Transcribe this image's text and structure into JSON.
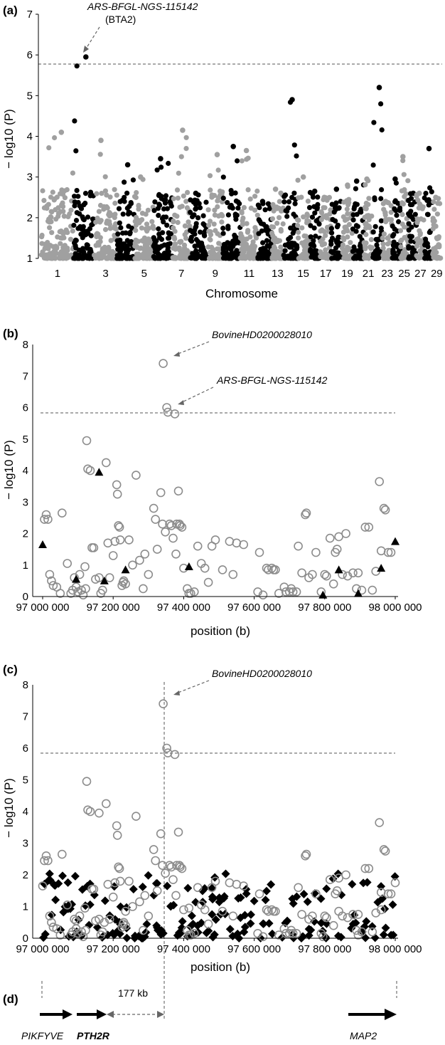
{
  "panels": {
    "a": {
      "label": "(a)",
      "ylabel": "− log10 (P)",
      "xlabel": "Chromosome",
      "annotation_marker": "ARS-BFGL-NGS-115142",
      "annotation_chrom": "(BTA2)"
    },
    "b": {
      "label": "(b)",
      "ylabel": "− log10 (P)",
      "xlabel": "position (b)",
      "annotation_top": "BovineHD0200028010",
      "annotation_second": "ARS-BFGL-NGS-115142"
    },
    "c": {
      "label": "(c)",
      "ylabel": "− log10 (P)",
      "xlabel": "position (b)",
      "annotation_top": "BovineHD0200028010"
    },
    "d": {
      "label": "(d)",
      "distance": "177 kb",
      "genes": [
        {
          "name": "PIKFYVE",
          "bold": false
        },
        {
          "name": "PTH2R",
          "bold": true
        },
        {
          "name": "MAP2",
          "bold": false
        }
      ]
    }
  },
  "chart_data": [
    {
      "type": "scatter",
      "title": "",
      "xlabel": "Chromosome",
      "ylabel": "− log10 (P)",
      "ylim": [
        1,
        7
      ],
      "yticks": [
        1,
        2,
        3,
        4,
        5,
        6,
        7
      ],
      "threshold": 5.8,
      "xtick_labels": [
        "1",
        "3",
        "5",
        "7",
        "9",
        "11",
        "13",
        "15",
        "17",
        "19",
        "21",
        "23",
        "25",
        "27",
        "29"
      ],
      "chromosomes": [
        {
          "chrom": 1,
          "color": "#a0a0a0",
          "max": 4.1
        },
        {
          "chrom": 2,
          "color": "#000000",
          "max": 5.95
        },
        {
          "chrom": 3,
          "color": "#a0a0a0",
          "max": 3.9
        },
        {
          "chrom": 4,
          "color": "#000000",
          "max": 3.3
        },
        {
          "chrom": 5,
          "color": "#a0a0a0",
          "max": 3.0
        },
        {
          "chrom": 6,
          "color": "#000000",
          "max": 3.45
        },
        {
          "chrom": 7,
          "color": "#a0a0a0",
          "max": 4.15
        },
        {
          "chrom": 8,
          "color": "#000000",
          "max": 2.6
        },
        {
          "chrom": 9,
          "color": "#a0a0a0",
          "max": 3.55
        },
        {
          "chrom": 10,
          "color": "#000000",
          "max": 3.75
        },
        {
          "chrom": 11,
          "color": "#a0a0a0",
          "max": 3.65
        },
        {
          "chrom": 12,
          "color": "#000000",
          "max": 2.4
        },
        {
          "chrom": 13,
          "color": "#a0a0a0",
          "max": 2.7
        },
        {
          "chrom": 14,
          "color": "#000000",
          "max": 4.9
        },
        {
          "chrom": 15,
          "color": "#a0a0a0",
          "max": 3.0
        },
        {
          "chrom": 16,
          "color": "#000000",
          "max": 2.65
        },
        {
          "chrom": 17,
          "color": "#a0a0a0",
          "max": 2.5
        },
        {
          "chrom": 18,
          "color": "#000000",
          "max": 2.7
        },
        {
          "chrom": 19,
          "color": "#a0a0a0",
          "max": 2.8
        },
        {
          "chrom": 20,
          "color": "#000000",
          "max": 2.9
        },
        {
          "chrom": 21,
          "color": "#a0a0a0",
          "max": 2.95
        },
        {
          "chrom": 22,
          "color": "#000000",
          "max": 5.2
        },
        {
          "chrom": 23,
          "color": "#a0a0a0",
          "max": 2.4
        },
        {
          "chrom": 24,
          "color": "#000000",
          "max": 2.95
        },
        {
          "chrom": 25,
          "color": "#a0a0a0",
          "max": 3.5
        },
        {
          "chrom": 26,
          "color": "#000000",
          "max": 2.6
        },
        {
          "chrom": 27,
          "color": "#a0a0a0",
          "max": 2.6
        },
        {
          "chrom": 28,
          "color": "#000000",
          "max": 3.7
        },
        {
          "chrom": 29,
          "color": "#a0a0a0",
          "max": 2.5
        }
      ]
    },
    {
      "type": "scatter",
      "title": "",
      "xlabel": "position (b)",
      "ylabel": "− log10 (P)",
      "xlim": [
        97000000,
        98000000
      ],
      "xtick_labels": [
        "97 000 000",
        "97 200 000",
        "97 400 000",
        "97 600 000",
        "97 800 000",
        "98 000 000"
      ],
      "xticks": [
        97000000,
        97200000,
        97400000,
        97600000,
        97800000,
        98000000
      ],
      "ylim": [
        0,
        8
      ],
      "yticks": [
        0,
        1,
        2,
        3,
        4,
        5,
        6,
        7,
        8
      ],
      "threshold": 5.8,
      "circles": [
        [
          97005000,
          2.45
        ],
        [
          97010000,
          2.6
        ],
        [
          97015000,
          2.45
        ],
        [
          97020000,
          0.7
        ],
        [
          97025000,
          0.5
        ],
        [
          97030000,
          0.35
        ],
        [
          97040000,
          0.3
        ],
        [
          97050000,
          0.1
        ],
        [
          97055000,
          2.65
        ],
        [
          97070000,
          1.05
        ],
        [
          97080000,
          0.1
        ],
        [
          97085000,
          0.2
        ],
        [
          97090000,
          0.6
        ],
        [
          97095000,
          0.3
        ],
        [
          97100000,
          0.15
        ],
        [
          97105000,
          0.7
        ],
        [
          97110000,
          0.2
        ],
        [
          97115000,
          0.05
        ],
        [
          97120000,
          0.95
        ],
        [
          97122000,
          0.25
        ],
        [
          97125000,
          4.95
        ],
        [
          97128000,
          4.05
        ],
        [
          97135000,
          4.0
        ],
        [
          97140000,
          1.55
        ],
        [
          97145000,
          1.55
        ],
        [
          97150000,
          0.55
        ],
        [
          97160000,
          0.6
        ],
        [
          97165000,
          0.1
        ],
        [
          97170000,
          0.2
        ],
        [
          97180000,
          4.25
        ],
        [
          97185000,
          1.7
        ],
        [
          97190000,
          0.6
        ],
        [
          97200000,
          1.3
        ],
        [
          97205000,
          1.75
        ],
        [
          97210000,
          3.55
        ],
        [
          97212000,
          3.25
        ],
        [
          97215000,
          2.25
        ],
        [
          97218000,
          2.2
        ],
        [
          97220000,
          1.8
        ],
        [
          97225000,
          0.35
        ],
        [
          97228000,
          0.45
        ],
        [
          97230000,
          0.5
        ],
        [
          97235000,
          0.4
        ],
        [
          97245000,
          1.8
        ],
        [
          97255000,
          1.0
        ],
        [
          97265000,
          3.85
        ],
        [
          97275000,
          1.15
        ],
        [
          97285000,
          0.25
        ],
        [
          97290000,
          1.35
        ],
        [
          97300000,
          0.7
        ],
        [
          97315000,
          2.8
        ],
        [
          97320000,
          2.45
        ],
        [
          97325000,
          1.5
        ],
        [
          97335000,
          3.3
        ],
        [
          97340000,
          2.3
        ],
        [
          97342000,
          7.4
        ],
        [
          97348000,
          2.05
        ],
        [
          97352000,
          6.0
        ],
        [
          97355000,
          5.85
        ],
        [
          97360000,
          2.3
        ],
        [
          97365000,
          2.25
        ],
        [
          97370000,
          1.85
        ],
        [
          97375000,
          5.8
        ],
        [
          97378000,
          1.35
        ],
        [
          97380000,
          2.3
        ],
        [
          97385000,
          3.35
        ],
        [
          97388000,
          2.3
        ],
        [
          97390000,
          2.25
        ],
        [
          97395000,
          2.2
        ],
        [
          97400000,
          0.9
        ],
        [
          97410000,
          0.25
        ],
        [
          97415000,
          0.1
        ],
        [
          97420000,
          0.1
        ],
        [
          97430000,
          0.15
        ],
        [
          97440000,
          1.6
        ],
        [
          97450000,
          1.05
        ],
        [
          97460000,
          0.9
        ],
        [
          97470000,
          0.45
        ],
        [
          97480000,
          1.6
        ],
        [
          97490000,
          1.8
        ],
        [
          97510000,
          0.85
        ],
        [
          97530000,
          1.75
        ],
        [
          97540000,
          0.7
        ],
        [
          97550000,
          1.7
        ],
        [
          97570000,
          1.65
        ],
        [
          97610000,
          0.15
        ],
        [
          97615000,
          1.4
        ],
        [
          97625000,
          0.05
        ],
        [
          97635000,
          0.9
        ],
        [
          97640000,
          0.85
        ],
        [
          97650000,
          0.9
        ],
        [
          97655000,
          0.85
        ],
        [
          97660000,
          0.85
        ],
        [
          97670000,
          0.1
        ],
        [
          97685000,
          0.3
        ],
        [
          97690000,
          0.15
        ],
        [
          97700000,
          0.15
        ],
        [
          97705000,
          0.25
        ],
        [
          97710000,
          0.15
        ],
        [
          97720000,
          0.15
        ],
        [
          97725000,
          1.6
        ],
        [
          97735000,
          0.75
        ],
        [
          97745000,
          2.6
        ],
        [
          97748000,
          2.65
        ],
        [
          97755000,
          0.6
        ],
        [
          97765000,
          0.7
        ],
        [
          97775000,
          1.4
        ],
        [
          97790000,
          0.15
        ],
        [
          97800000,
          0.7
        ],
        [
          97805000,
          0.65
        ],
        [
          97815000,
          1.85
        ],
        [
          97825000,
          0.4
        ],
        [
          97830000,
          1.4
        ],
        [
          97835000,
          1.5
        ],
        [
          97840000,
          1.9
        ],
        [
          97850000,
          0.7
        ],
        [
          97860000,
          2.0
        ],
        [
          97865000,
          0.65
        ],
        [
          97880000,
          0.75
        ],
        [
          97890000,
          0.25
        ],
        [
          97895000,
          0.75
        ],
        [
          97905000,
          0.2
        ],
        [
          97915000,
          2.2
        ],
        [
          97925000,
          2.2
        ],
        [
          97935000,
          0.2
        ],
        [
          97945000,
          0.8
        ],
        [
          97955000,
          3.65
        ],
        [
          97960000,
          1.45
        ],
        [
          97968000,
          2.8
        ],
        [
          97972000,
          2.75
        ],
        [
          97980000,
          1.4
        ],
        [
          97988000,
          1.4
        ]
      ],
      "triangles": [
        [
          97000000,
          1.65
        ],
        [
          97095000,
          0.55
        ],
        [
          97160000,
          3.95
        ],
        [
          97175000,
          0.5
        ],
        [
          97235000,
          0.85
        ],
        [
          97415000,
          0.95
        ],
        [
          97795000,
          0.05
        ],
        [
          97840000,
          0.85
        ],
        [
          97895000,
          0.1
        ],
        [
          97960000,
          0.9
        ],
        [
          98000000,
          1.75
        ]
      ]
    },
    {
      "type": "scatter",
      "title": "",
      "xlabel": "position (b)",
      "ylabel": "− log10 (P)",
      "xlim": [
        97000000,
        98000000
      ],
      "xtick_labels": [
        "97 000 000",
        "97 200 000",
        "97 400 000",
        "97 600 000",
        "97 800 000",
        "98 000 000"
      ],
      "xticks": [
        97000000,
        97200000,
        97400000,
        97600000,
        97800000,
        98000000
      ],
      "ylim": [
        0,
        8
      ],
      "yticks": [
        0,
        1,
        2,
        3,
        4,
        5,
        6,
        7,
        8
      ],
      "threshold": 5.8,
      "lead_snp_position": 97342000,
      "diamond_max": 2.05
    }
  ],
  "colors": {
    "grey": "#a0a0a0",
    "black": "#000000",
    "circle_stroke": "#8c8c8c",
    "dashed": "#555555"
  }
}
